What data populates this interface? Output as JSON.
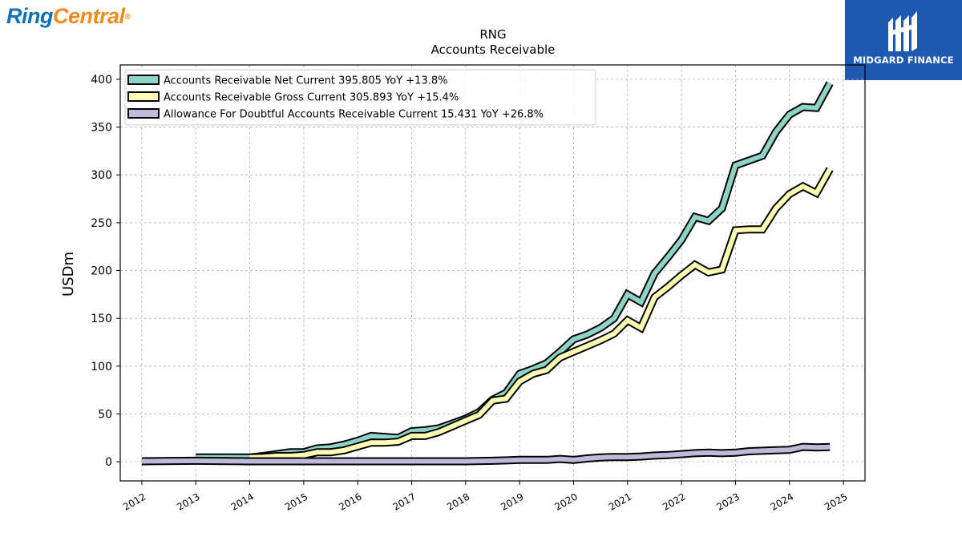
{
  "branding": {
    "left_logo_part1": "Ring",
    "left_logo_part2": "Central",
    "left_logo_reg": "®",
    "right_logo_name": "MIDGARD FINANCE"
  },
  "chart_data": {
    "type": "line",
    "title": "RNG",
    "subtitle": "Accounts Receivable",
    "ylabel": "USDm",
    "xlabel": "",
    "ylim": [
      -20,
      415
    ],
    "xlim": [
      2011.6,
      2025.4
    ],
    "yticks": [
      0,
      50,
      100,
      150,
      200,
      250,
      300,
      350,
      400
    ],
    "xticks": [
      "2012",
      "2013",
      "2014",
      "2015",
      "2016",
      "2017",
      "2018",
      "2019",
      "2020",
      "2021",
      "2022",
      "2023",
      "2024",
      "2025"
    ],
    "grid": true,
    "legend_position": "top-left",
    "series": [
      {
        "name": "Accounts Receivable Net Current  395.805 YoY +13.8%",
        "color": "#8dd3c7",
        "x": [
          "2013-01-01",
          "2014-01-01",
          "2014-04-01",
          "2014-07-01",
          "2014-10-01",
          "2015-01-01",
          "2015-04-01",
          "2015-07-01",
          "2015-10-01",
          "2016-01-01",
          "2016-04-01",
          "2016-07-01",
          "2016-10-01",
          "2017-01-01",
          "2017-04-01",
          "2017-07-01",
          "2017-10-01",
          "2018-01-01",
          "2018-04-01",
          "2018-07-01",
          "2018-10-01",
          "2019-01-01",
          "2019-04-01",
          "2019-07-01",
          "2019-10-01",
          "2020-01-01",
          "2020-04-01",
          "2020-07-01",
          "2020-10-01",
          "2021-01-01",
          "2021-04-01",
          "2021-07-01",
          "2021-10-01",
          "2022-01-01",
          "2022-04-01",
          "2022-07-01",
          "2022-10-01",
          "2023-01-01",
          "2023-04-01",
          "2023-07-01",
          "2023-10-01",
          "2024-01-01",
          "2024-04-01",
          "2024-07-01",
          "2024-10-01"
        ],
        "values": [
          4.5,
          4.5,
          6,
          8,
          10,
          10,
          14,
          15,
          18,
          22,
          27,
          26,
          25,
          32,
          33,
          35,
          40,
          45,
          52,
          65,
          72,
          92,
          97,
          103,
          115,
          128,
          133,
          140,
          150,
          175,
          167,
          197,
          214,
          232,
          256,
          252,
          265,
          310,
          315,
          320,
          345,
          363,
          371,
          370,
          396
        ]
      },
      {
        "name": "Accounts Receivable Gross Current  305.893 YoY +15.4%",
        "color": "#ffffb3",
        "x": [
          "2014-01-01",
          "2014-04-01",
          "2014-07-01",
          "2014-10-01",
          "2015-01-01",
          "2015-04-01",
          "2015-07-01",
          "2015-10-01",
          "2016-01-01",
          "2016-04-01",
          "2016-07-01",
          "2016-10-01",
          "2017-01-01",
          "2017-04-01",
          "2017-07-01",
          "2017-10-01",
          "2018-01-01",
          "2018-04-01",
          "2018-07-01",
          "2018-10-01",
          "2019-01-01",
          "2019-04-01",
          "2019-07-01",
          "2019-10-01",
          "2020-01-01",
          "2020-04-01",
          "2020-07-01",
          "2020-10-01",
          "2021-01-01",
          "2021-04-01",
          "2021-07-01",
          "2021-10-01",
          "2022-01-01",
          "2022-04-01",
          "2022-07-01",
          "2022-10-01",
          "2023-01-01",
          "2023-04-01",
          "2023-07-01",
          "2023-10-01",
          "2024-01-01",
          "2024-04-01",
          "2024-07-01",
          "2024-10-01"
        ],
        "values": [
          4.5,
          5,
          6,
          6,
          7,
          10,
          10,
          12,
          16,
          20,
          20,
          21,
          27,
          27,
          31,
          37,
          43,
          49,
          64,
          66,
          84,
          92,
          96,
          109,
          115,
          121,
          127,
          134,
          148,
          140,
          172,
          183,
          195,
          206,
          198,
          201,
          242,
          243,
          243,
          265,
          280,
          288,
          281,
          306
        ]
      },
      {
        "name": "Allowance For Doubtful Accounts Receivable Current  15.431 YoY +26.8%",
        "color": "#bebada",
        "x": [
          "2012-01-01",
          "2013-01-01",
          "2014-01-01",
          "2015-01-01",
          "2016-01-01",
          "2017-01-01",
          "2017-07-01",
          "2018-01-01",
          "2018-07-01",
          "2019-01-01",
          "2019-07-01",
          "2019-10-01",
          "2020-01-01",
          "2020-04-01",
          "2020-07-01",
          "2020-10-01",
          "2021-01-01",
          "2021-04-01",
          "2021-07-01",
          "2021-10-01",
          "2022-01-01",
          "2022-04-01",
          "2022-07-01",
          "2022-10-01",
          "2023-01-01",
          "2023-04-01",
          "2023-07-01",
          "2023-10-01",
          "2024-01-01",
          "2024-04-01",
          "2024-07-01",
          "2024-10-01"
        ],
        "values": [
          0.5,
          1,
          0.5,
          0.5,
          0.5,
          0.5,
          0.5,
          0.5,
          1,
          2,
          2,
          3,
          2,
          3.5,
          4.5,
          5,
          5,
          5.5,
          6.5,
          7,
          8,
          9,
          9.5,
          9,
          9.5,
          11,
          11.5,
          12,
          12.5,
          15.5,
          15,
          15.4
        ]
      }
    ]
  }
}
